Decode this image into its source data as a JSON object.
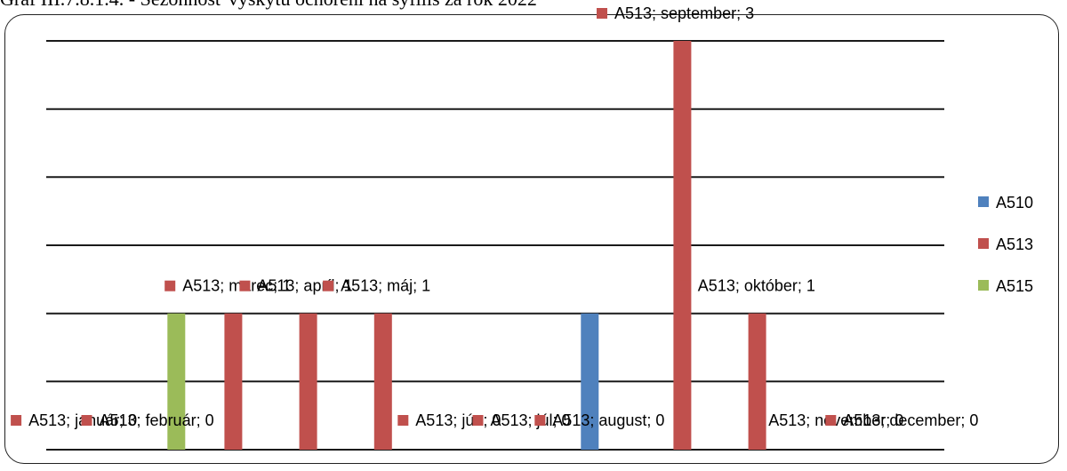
{
  "caption": "Graf III.7.8.1.4. - Sezónnosť výskytu ochorení na syfilis za rok 2022",
  "chart_data": {
    "type": "bar",
    "title": "",
    "xlabel": "",
    "ylabel": "",
    "ylim": [
      0,
      3
    ],
    "grid": true,
    "legend_position": "right",
    "categories": [
      "január",
      "február",
      "marec",
      "apríl",
      "máj",
      "jún",
      "júl",
      "august",
      "september",
      "október",
      "november",
      "december"
    ],
    "series": [
      {
        "name": "A510",
        "color": "#4f81bd",
        "values": [
          0,
          0,
          0,
          0,
          0,
          0,
          0,
          1,
          0,
          0,
          0,
          0
        ]
      },
      {
        "name": "A513",
        "color": "#c0504d",
        "values": [
          0,
          0,
          1,
          1,
          1,
          0,
          0,
          0,
          3,
          1,
          0,
          0
        ]
      },
      {
        "name": "A515",
        "color": "#9bbb59",
        "values": [
          0,
          1,
          0,
          0,
          0,
          0,
          0,
          0,
          0,
          0,
          0,
          0
        ]
      }
    ],
    "data_labels": [
      {
        "text": "A513; január; 0",
        "category": "január",
        "value": 0
      },
      {
        "text": "A513; február; 0",
        "category": "február",
        "value": 0
      },
      {
        "text": "A513; marec; 1",
        "category": "marec",
        "value": 1
      },
      {
        "text": "A513; apríl; 1",
        "category": "apríl",
        "value": 1
      },
      {
        "text": "A513; máj; 1",
        "category": "máj",
        "value": 1
      },
      {
        "text": "A513; jún; 0",
        "category": "jún",
        "value": 0
      },
      {
        "text": "A513; júl; 0",
        "category": "júl",
        "value": 0
      },
      {
        "text": "A513; august; 0",
        "category": "august",
        "value": 0
      },
      {
        "text": "A513; september; 3",
        "category": "september",
        "value": 3
      },
      {
        "text": "A513; október; 1",
        "category": "október",
        "value": 1
      },
      {
        "text": "A513; november; 0",
        "category": "november",
        "value": 0
      },
      {
        "text": "A513; december; 0",
        "category": "december",
        "value": 0
      }
    ]
  }
}
